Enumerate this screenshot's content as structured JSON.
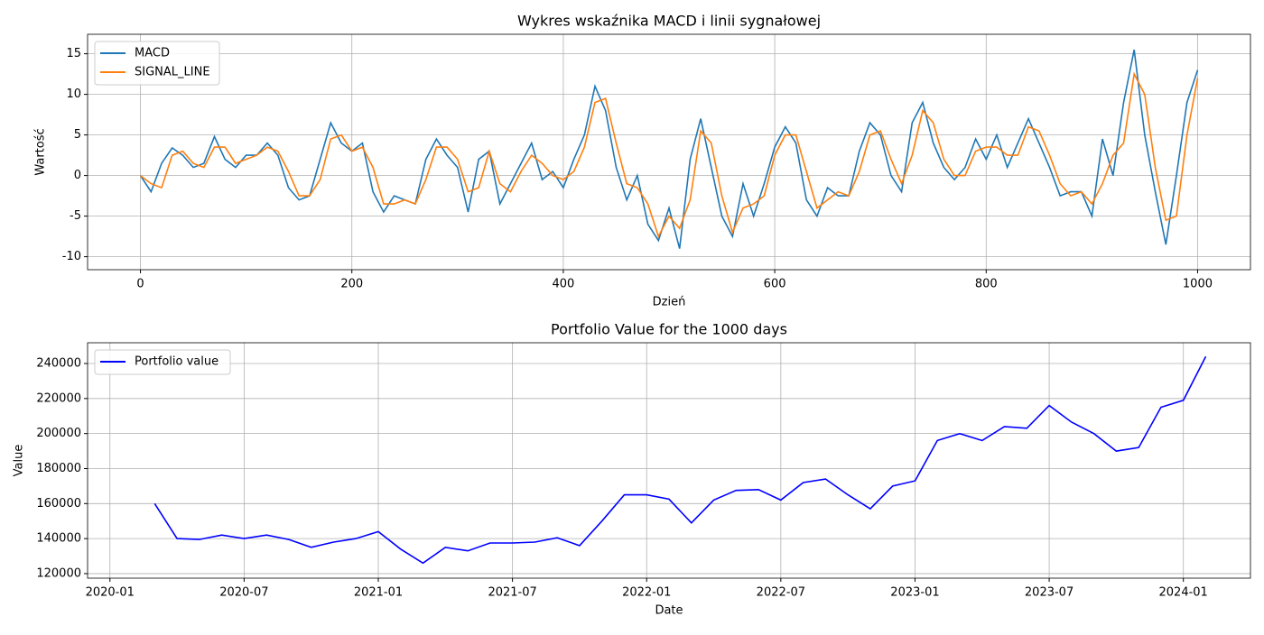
{
  "chart_data": [
    {
      "type": "line",
      "title": "Wykres wskaźnika MACD i linii sygnałowej",
      "xlabel": "Dzień",
      "ylabel": "Wartość",
      "x": [
        0,
        10,
        20,
        30,
        40,
        50,
        60,
        70,
        80,
        90,
        100,
        110,
        120,
        130,
        140,
        150,
        160,
        170,
        180,
        190,
        200,
        210,
        220,
        230,
        240,
        250,
        260,
        270,
        280,
        290,
        300,
        310,
        320,
        330,
        340,
        350,
        360,
        370,
        380,
        390,
        400,
        410,
        420,
        430,
        440,
        450,
        460,
        470,
        480,
        490,
        500,
        510,
        520,
        530,
        540,
        550,
        560,
        570,
        580,
        590,
        600,
        610,
        620,
        630,
        640,
        650,
        660,
        670,
        680,
        690,
        700,
        710,
        720,
        730,
        740,
        750,
        760,
        770,
        780,
        790,
        800,
        810,
        820,
        830,
        840,
        850,
        860,
        870,
        880,
        890,
        900,
        910,
        920,
        930,
        940,
        950,
        960,
        970,
        980,
        990,
        1000
      ],
      "series": [
        {
          "name": "MACD",
          "color": "#1f77b4",
          "values": [
            0,
            -2,
            1.5,
            3.4,
            2.5,
            1,
            1.5,
            4.8,
            2,
            1,
            2.5,
            2.5,
            4,
            2.5,
            -1.5,
            -3,
            -2.5,
            2,
            6.5,
            4,
            3,
            4,
            -2,
            -4.5,
            -2.5,
            -3,
            -3.5,
            2,
            4.5,
            2.5,
            1,
            -4.5,
            2,
            3,
            -3.5,
            -1,
            1.5,
            4,
            -0.5,
            0.5,
            -1.5,
            2,
            5,
            11,
            8,
            1,
            -3,
            0,
            -6,
            -8,
            -4,
            -9,
            2,
            7,
            1,
            -5,
            -7.5,
            -1,
            -5,
            -1,
            3.5,
            6,
            4,
            -3,
            -5,
            -1.5,
            -2.5,
            -2.5,
            3,
            6.5,
            5,
            0,
            -2,
            6.5,
            9,
            4,
            1,
            -0.5,
            1,
            4.5,
            2,
            5,
            1,
            4,
            7,
            4,
            1,
            -2.5,
            -2,
            -2,
            -5,
            4.5,
            0,
            9,
            15.5,
            5,
            -2,
            -8.5,
            0,
            9,
            13
          ]
        },
        {
          "name": "SIGNAL_LINE",
          "color": "#ff7f0e",
          "values": [
            0,
            -1,
            -1.5,
            2.5,
            3,
            1.5,
            1,
            3.5,
            3.5,
            1.5,
            2,
            2.5,
            3.5,
            3,
            0.5,
            -2.5,
            -2.5,
            -0.5,
            4.5,
            5,
            3,
            3.5,
            1,
            -3.5,
            -3.5,
            -3,
            -3.5,
            -0.5,
            3.5,
            3.5,
            2,
            -2,
            -1.5,
            3,
            -1,
            -2,
            0.5,
            2.5,
            1.5,
            0,
            -0.5,
            0.5,
            3.5,
            9,
            9.5,
            4,
            -1,
            -1.5,
            -3.5,
            -7.5,
            -5,
            -6.5,
            -3,
            5.5,
            4,
            -2.5,
            -7,
            -4,
            -3.5,
            -2.5,
            2.5,
            5,
            5,
            0.5,
            -4,
            -3,
            -2,
            -2.5,
            0.5,
            5,
            5.5,
            2,
            -1,
            2.5,
            8,
            6.5,
            2,
            0,
            0,
            3,
            3.5,
            3.5,
            2.5,
            2.5,
            6,
            5.5,
            2.5,
            -1,
            -2.5,
            -2,
            -3.5,
            -1,
            2.5,
            4,
            12.5,
            10,
            1,
            -5.5,
            -5,
            5,
            12
          ]
        }
      ],
      "xlim": [
        -50,
        1050
      ],
      "xticks": [
        0,
        200,
        400,
        600,
        800,
        1000
      ],
      "ylim": [
        -11.6,
        17.4
      ],
      "yticks": [
        -10,
        -5,
        0,
        5,
        10,
        15
      ],
      "grid": true,
      "legend": "upper left"
    },
    {
      "type": "line",
      "title": "Portfolio Value for the 1000 days",
      "xlabel": "Date",
      "ylabel": "Value",
      "x": [
        "2020-03",
        "2020-04",
        "2020-05",
        "2020-06",
        "2020-07",
        "2020-08",
        "2020-09",
        "2020-10",
        "2020-11",
        "2020-12",
        "2021-01",
        "2021-02",
        "2021-03",
        "2021-04",
        "2021-05",
        "2021-06",
        "2021-07",
        "2021-08",
        "2021-09",
        "2021-10",
        "2021-11",
        "2021-12",
        "2022-01",
        "2022-02",
        "2022-03",
        "2022-04",
        "2022-05",
        "2022-06",
        "2022-07",
        "2022-08",
        "2022-09",
        "2022-10",
        "2022-11",
        "2022-12",
        "2023-01",
        "2023-02",
        "2023-03",
        "2023-04",
        "2023-05",
        "2023-06",
        "2023-07",
        "2023-08",
        "2023-09",
        "2023-10",
        "2023-11",
        "2023-12",
        "2024-01",
        "2024-02"
      ],
      "series": [
        {
          "name": "Portfolio value",
          "color": "#0000ff",
          "values": [
            160000,
            140000,
            139500,
            142000,
            140000,
            142000,
            139500,
            135000,
            138000,
            140000,
            144000,
            134000,
            126000,
            135000,
            133000,
            137500,
            137500,
            138000,
            140500,
            136000,
            150000,
            165000,
            165000,
            162500,
            149000,
            162000,
            167500,
            168000,
            162000,
            172000,
            174000,
            165000,
            157000,
            170000,
            173000,
            196000,
            200000,
            196000,
            204000,
            203000,
            216000,
            206500,
            200000,
            190000,
            192000,
            215000,
            219000,
            244000
          ]
        }
      ],
      "xlim": [
        "2019-12",
        "2024-04"
      ],
      "xticks": [
        "2020-01",
        "2020-07",
        "2021-01",
        "2021-07",
        "2022-01",
        "2022-07",
        "2023-01",
        "2023-07",
        "2024-01"
      ],
      "ylim": [
        117400,
        251850
      ],
      "yticks": [
        120000,
        140000,
        160000,
        180000,
        200000,
        220000,
        240000
      ],
      "grid": true,
      "legend": "upper left"
    }
  ]
}
